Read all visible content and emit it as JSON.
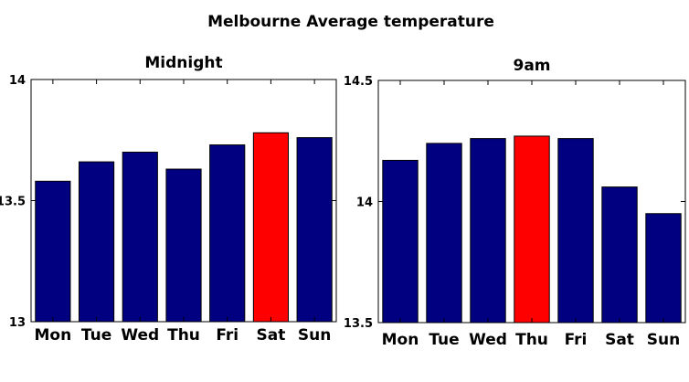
{
  "suptitle": "Melbourne Average temperature",
  "chart_data": [
    {
      "type": "bar",
      "title": "Midnight",
      "xlabel": "",
      "ylabel": "",
      "categories": [
        "Mon",
        "Tue",
        "Wed",
        "Thu",
        "Fri",
        "Sat",
        "Sun"
      ],
      "values": [
        13.58,
        13.66,
        13.7,
        13.63,
        13.73,
        13.78,
        13.76
      ],
      "ylim": [
        13,
        14
      ],
      "yticks": [
        13,
        13.5,
        14
      ],
      "ytick_labels": [
        "13",
        "13.5",
        "14"
      ],
      "bar_color": "#000080",
      "highlight_index": 5,
      "highlight_color": "#ff0000",
      "grid": false,
      "legend": "none"
    },
    {
      "type": "bar",
      "title": "9am",
      "xlabel": "",
      "ylabel": "",
      "categories": [
        "Mon",
        "Tue",
        "Wed",
        "Thu",
        "Fri",
        "Sat",
        "Sun"
      ],
      "values": [
        14.17,
        14.24,
        14.26,
        14.27,
        14.26,
        14.06,
        13.95
      ],
      "ylim": [
        13.5,
        14.5
      ],
      "yticks": [
        13.5,
        14,
        14.5
      ],
      "ytick_labels": [
        "13.5",
        "14",
        "14.5"
      ],
      "bar_color": "#000080",
      "highlight_index": 3,
      "highlight_color": "#ff0000",
      "grid": false,
      "legend": "none"
    }
  ]
}
